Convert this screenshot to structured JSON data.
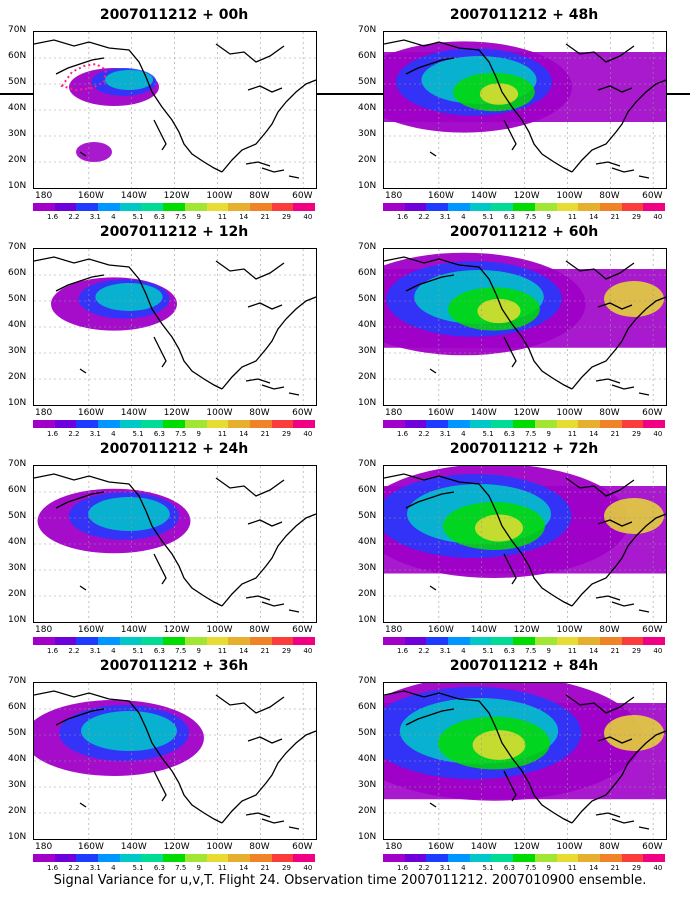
{
  "panels": [
    {
      "title": "2007011212 + 00h"
    },
    {
      "title": "2007011212 + 48h"
    },
    {
      "title": "2007011212 + 12h"
    },
    {
      "title": "2007011212 + 60h"
    },
    {
      "title": "2007011212 + 24h"
    },
    {
      "title": "2007011212 + 72h"
    },
    {
      "title": "2007011212 + 36h"
    },
    {
      "title": "2007011212 + 84h"
    }
  ],
  "lat_labels": [
    "70N",
    "60N",
    "50N",
    "40N",
    "30N",
    "20N",
    "10N"
  ],
  "lon_labels": [
    "180",
    "160W",
    "140W",
    "120W",
    "100W",
    "80W",
    "60W"
  ],
  "colorbar": {
    "labels": [
      "1.6",
      "2.2",
      "3.1",
      "4",
      "5.1",
      "6.3",
      "7.5",
      "9",
      "11",
      "14",
      "21",
      "29",
      "40"
    ],
    "colors": [
      "#a000c8",
      "#6e00dc",
      "#1e3cff",
      "#0096ff",
      "#00c8c8",
      "#00dc96",
      "#00dc00",
      "#a0e632",
      "#e6dc32",
      "#e6af2d",
      "#f08228",
      "#fa3c3c",
      "#f00082"
    ]
  },
  "footer": "Signal Variance for u,v,T. Flight 24. Observation time 2007011212. 2007010900 ensemble."
}
